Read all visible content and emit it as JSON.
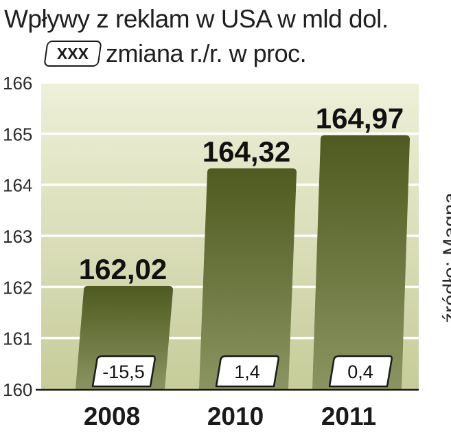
{
  "title": "Wpływy z reklam w USA w mld dol.",
  "legend": {
    "box_label": "XXX",
    "text": "zmiana r./r. w proc."
  },
  "source": "źródło: Magna",
  "colors": {
    "bar_top": "#4e5a1f",
    "bar_bottom": "#8a9460",
    "bg_top": "#eef0d8",
    "bg_bottom": "#c7cc9a",
    "grid": "#ffffff"
  },
  "chart_data": {
    "type": "bar",
    "categories": [
      "2008",
      "2010",
      "2011"
    ],
    "values": [
      162.02,
      164.32,
      164.97
    ],
    "value_labels": [
      "162,02",
      "164,32",
      "164,97"
    ],
    "change_labels": [
      "-15,5",
      "1,4",
      "0,4"
    ],
    "yticks": [
      "160",
      "161",
      "162",
      "163",
      "164",
      "165",
      "166"
    ],
    "ylim": [
      160,
      166
    ],
    "grid": true,
    "title": "Wpływy z reklam w USA w mld dol."
  }
}
